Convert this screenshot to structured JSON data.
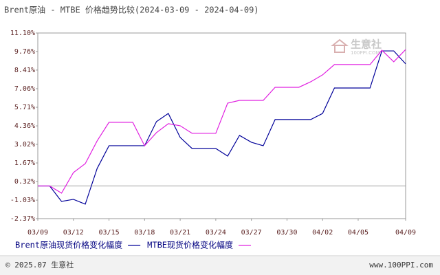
{
  "chart_data": {
    "type": "line",
    "title": "Brent原油 - MTBE 价格趋势比较(2024-03-09 - 2024-04-09)",
    "categories": [
      "03/09",
      null,
      null,
      "03/12",
      null,
      null,
      "03/15",
      null,
      null,
      "03/18",
      null,
      null,
      "03/21",
      null,
      null,
      "03/24",
      null,
      null,
      "03/27",
      null,
      null,
      "03/30",
      null,
      null,
      "04/02",
      null,
      null,
      "04/05",
      null,
      null,
      null,
      "04/09"
    ],
    "series": [
      {
        "name": "Brent原油现货价格变化幅度",
        "color": "#000099",
        "values": [
          0,
          0,
          -1.12,
          -0.97,
          -1.32,
          1.27,
          2.92,
          2.92,
          2.92,
          2.92,
          4.67,
          5.26,
          3.52,
          2.72,
          2.72,
          2.72,
          2.17,
          3.67,
          3.17,
          2.92,
          4.82,
          4.82,
          4.82,
          4.82,
          5.26,
          7.11,
          7.11,
          7.11,
          7.11,
          9.8,
          9.8,
          8.86
        ]
      },
      {
        "name": "MTBE现货价格变化幅度",
        "color": "#e020e0",
        "values": [
          0,
          0,
          -0.52,
          0.97,
          1.62,
          3.27,
          4.62,
          4.62,
          4.62,
          2.92,
          3.87,
          4.52,
          4.37,
          3.82,
          3.82,
          3.82,
          6.01,
          6.21,
          6.21,
          6.21,
          7.16,
          7.16,
          7.16,
          7.56,
          8.06,
          8.81,
          8.81,
          8.81,
          8.81,
          9.85,
          9.01,
          9.9
        ]
      }
    ],
    "ylim": [
      -2.37,
      11.1
    ],
    "yticks": [
      {
        "value": 11.1,
        "label": "11.10%"
      },
      {
        "value": 9.76,
        "label": "9.76%"
      },
      {
        "value": 8.41,
        "label": "8.41%"
      },
      {
        "value": 7.06,
        "label": "7.06%"
      },
      {
        "value": 5.71,
        "label": "5.71%"
      },
      {
        "value": 4.36,
        "label": "4.36%"
      },
      {
        "value": 3.02,
        "label": "3.02%"
      },
      {
        "value": 1.67,
        "label": "1.67%"
      },
      {
        "value": 0.32,
        "label": "0.32%"
      },
      {
        "value": -1.03,
        "label": "-1.03%"
      },
      {
        "value": -2.37,
        "label": "-2.37%"
      }
    ],
    "grid": false,
    "watermark": {
      "name": "生意社",
      "site": "100PPI.COM"
    },
    "footer": {
      "left": "© 2025.07 生意社",
      "right": "www.100PPI.com"
    }
  }
}
